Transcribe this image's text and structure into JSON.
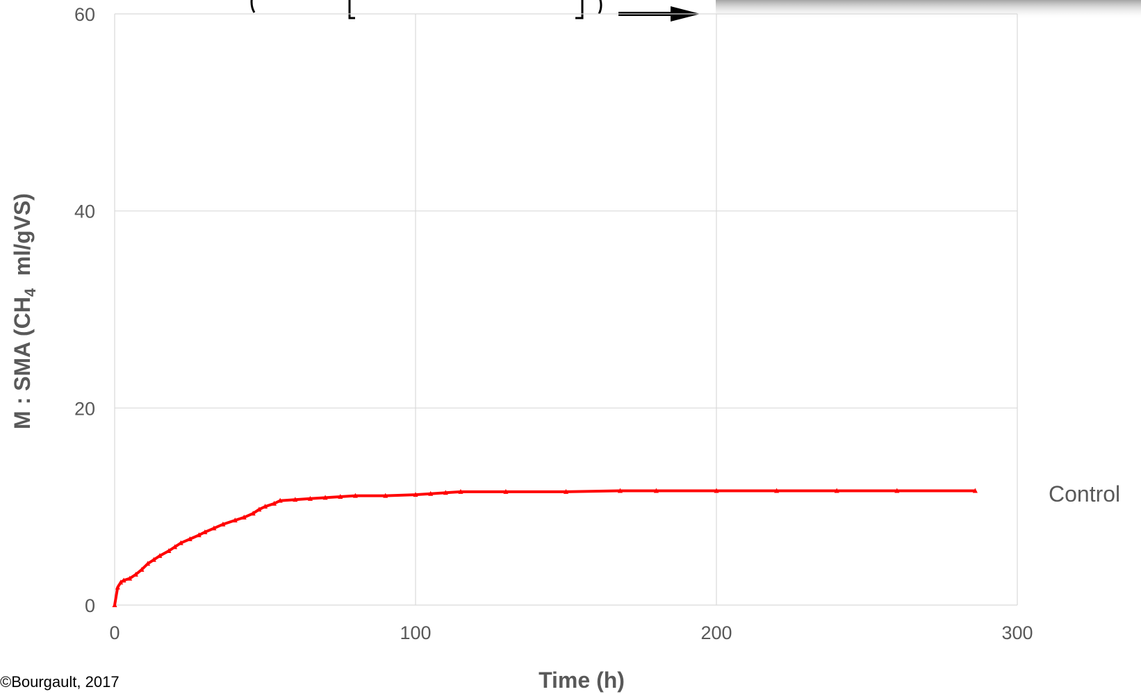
{
  "chart_data": {
    "type": "scatter",
    "title": "",
    "xlabel": "Time (h)",
    "ylabel": "M : SMA (CH4 ml/gVS)",
    "ylabel_parts": {
      "before": "M : SMA (CH",
      "sub": "4",
      "after": "  ml/gVS)"
    },
    "xlim": [
      0,
      300
    ],
    "ylim": [
      0,
      60
    ],
    "x_ticks": [
      "0",
      "100",
      "200",
      "300"
    ],
    "y_ticks": [
      "0",
      "20",
      "40",
      "60"
    ],
    "grid": true,
    "legend": "none",
    "series": [
      {
        "name": "Control",
        "color": "#ff0000",
        "marker": "triangle",
        "points": [
          [
            0,
            0
          ],
          [
            1,
            1.8
          ],
          [
            2,
            2.3
          ],
          [
            3,
            2.5
          ],
          [
            5,
            2.7
          ],
          [
            7,
            3.1
          ],
          [
            9,
            3.6
          ],
          [
            11,
            4.2
          ],
          [
            13,
            4.6
          ],
          [
            15,
            5.0
          ],
          [
            18,
            5.5
          ],
          [
            20,
            5.9
          ],
          [
            22,
            6.3
          ],
          [
            25,
            6.7
          ],
          [
            28,
            7.1
          ],
          [
            30,
            7.4
          ],
          [
            33,
            7.8
          ],
          [
            36,
            8.2
          ],
          [
            40,
            8.6
          ],
          [
            43,
            8.9
          ],
          [
            46,
            9.3
          ],
          [
            48,
            9.7
          ],
          [
            50,
            10.0
          ],
          [
            53,
            10.3
          ],
          [
            55,
            10.6
          ],
          [
            60,
            10.7
          ],
          [
            65,
            10.8
          ],
          [
            70,
            10.9
          ],
          [
            75,
            11.0
          ],
          [
            80,
            11.1
          ],
          [
            90,
            11.1
          ],
          [
            100,
            11.2
          ],
          [
            105,
            11.3
          ],
          [
            110,
            11.4
          ],
          [
            115,
            11.5
          ],
          [
            130,
            11.5
          ],
          [
            150,
            11.5
          ],
          [
            168,
            11.6
          ],
          [
            180,
            11.6
          ],
          [
            200,
            11.6
          ],
          [
            220,
            11.6
          ],
          [
            240,
            11.6
          ],
          [
            260,
            11.6
          ],
          [
            286,
            11.6
          ]
        ]
      }
    ]
  },
  "series_label": "Control",
  "credit": "©Bourgault, 2017"
}
